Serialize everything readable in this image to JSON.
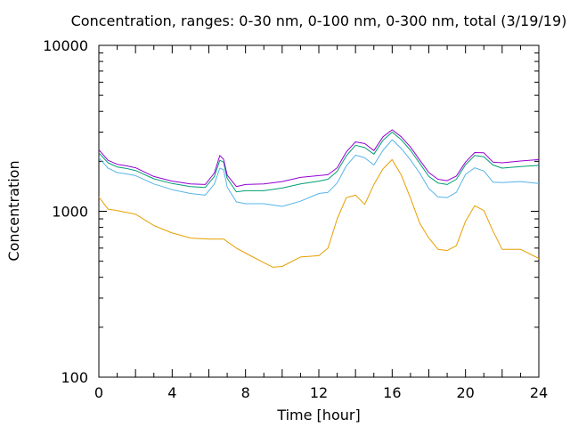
{
  "chart_data": {
    "type": "line",
    "title": "Concentration, ranges: 0-30 nm, 0-100 nm, 0-300 nm, total (3/19/19)",
    "xlabel": "Time [hour]",
    "ylabel": "Concentration",
    "xlim": [
      0,
      24
    ],
    "ylim": [
      100,
      10000
    ],
    "yscale": "log",
    "grid": false,
    "legend": "none",
    "x_ticks": [
      "0",
      "4",
      "8",
      "12",
      "16",
      "20",
      "24"
    ],
    "y_ticks": [
      "100",
      "1000",
      "10000"
    ],
    "series": [
      {
        "color": "#e69f00",
        "x": [
          0,
          0.5,
          1,
          2,
          3,
          4,
          5,
          6,
          6.8,
          7.5,
          8,
          9,
          9.5,
          10,
          11,
          12,
          12.5,
          13,
          13.5,
          14,
          14.5,
          15,
          15.5,
          16,
          16.5,
          17,
          17.5,
          18,
          18.5,
          19,
          19.5,
          20,
          20.5,
          21,
          21.5,
          22,
          23,
          24
        ],
        "y": [
          1220,
          1030,
          1010,
          960,
          820,
          740,
          690,
          680,
          680,
          600,
          560,
          490,
          460,
          465,
          530,
          540,
          600,
          900,
          1210,
          1250,
          1100,
          1450,
          1800,
          2050,
          1650,
          1200,
          850,
          690,
          590,
          580,
          620,
          870,
          1080,
          1010,
          760,
          590,
          590,
          520
        ]
      },
      {
        "color": "#56b4e9",
        "x": [
          0,
          0.5,
          1,
          1.5,
          2,
          3,
          4,
          5,
          5.8,
          6.3,
          6.6,
          6.8,
          7,
          7.5,
          8,
          9,
          10,
          11,
          12,
          12.5,
          13,
          13.5,
          14,
          14.5,
          15,
          15.5,
          16,
          16.5,
          17,
          17.5,
          18,
          18.5,
          19,
          19.5,
          20,
          20.5,
          21,
          21.5,
          22,
          23,
          24
        ],
        "y": [
          2100,
          1820,
          1710,
          1680,
          1640,
          1460,
          1350,
          1280,
          1250,
          1460,
          1820,
          1780,
          1400,
          1140,
          1110,
          1110,
          1070,
          1150,
          1280,
          1300,
          1480,
          1880,
          2180,
          2100,
          1900,
          2330,
          2700,
          2390,
          2040,
          1700,
          1370,
          1220,
          1210,
          1300,
          1670,
          1830,
          1750,
          1500,
          1490,
          1510,
          1470
        ]
      },
      {
        "color": "#009e73",
        "x": [
          0,
          0.5,
          1,
          1.5,
          2,
          3,
          4,
          5,
          5.8,
          6.3,
          6.6,
          6.8,
          7,
          7.5,
          8,
          9,
          10,
          11,
          12,
          12.5,
          13,
          13.5,
          14,
          14.5,
          15,
          15.5,
          16,
          16.5,
          17,
          17.5,
          18,
          18.5,
          19,
          19.5,
          20,
          20.5,
          21,
          21.5,
          22,
          23,
          24
        ],
        "y": [
          2250,
          1960,
          1850,
          1810,
          1760,
          1570,
          1470,
          1410,
          1390,
          1620,
          2030,
          1980,
          1580,
          1310,
          1330,
          1330,
          1380,
          1460,
          1520,
          1560,
          1740,
          2160,
          2500,
          2420,
          2210,
          2680,
          3000,
          2700,
          2330,
          1950,
          1620,
          1480,
          1450,
          1560,
          1910,
          2170,
          2130,
          1900,
          1820,
          1860,
          1890
        ]
      },
      {
        "color": "#9400d3",
        "x": [
          0,
          0.5,
          1,
          1.5,
          2,
          3,
          4,
          5,
          5.8,
          6.3,
          6.6,
          6.8,
          7,
          7.5,
          8,
          9,
          10,
          11,
          12,
          12.5,
          13,
          13.5,
          14,
          14.5,
          15,
          15.5,
          16,
          16.5,
          17,
          17.5,
          18,
          18.5,
          19,
          19.5,
          20,
          20.5,
          21,
          21.5,
          22,
          23,
          24
        ],
        "y": [
          2350,
          2030,
          1920,
          1880,
          1830,
          1620,
          1520,
          1460,
          1450,
          1700,
          2170,
          2060,
          1650,
          1410,
          1450,
          1460,
          1510,
          1600,
          1640,
          1660,
          1830,
          2280,
          2620,
          2560,
          2320,
          2810,
          3100,
          2810,
          2440,
          2040,
          1710,
          1560,
          1530,
          1630,
          1980,
          2260,
          2250,
          1980,
          1960,
          2010,
          2050
        ]
      }
    ]
  }
}
